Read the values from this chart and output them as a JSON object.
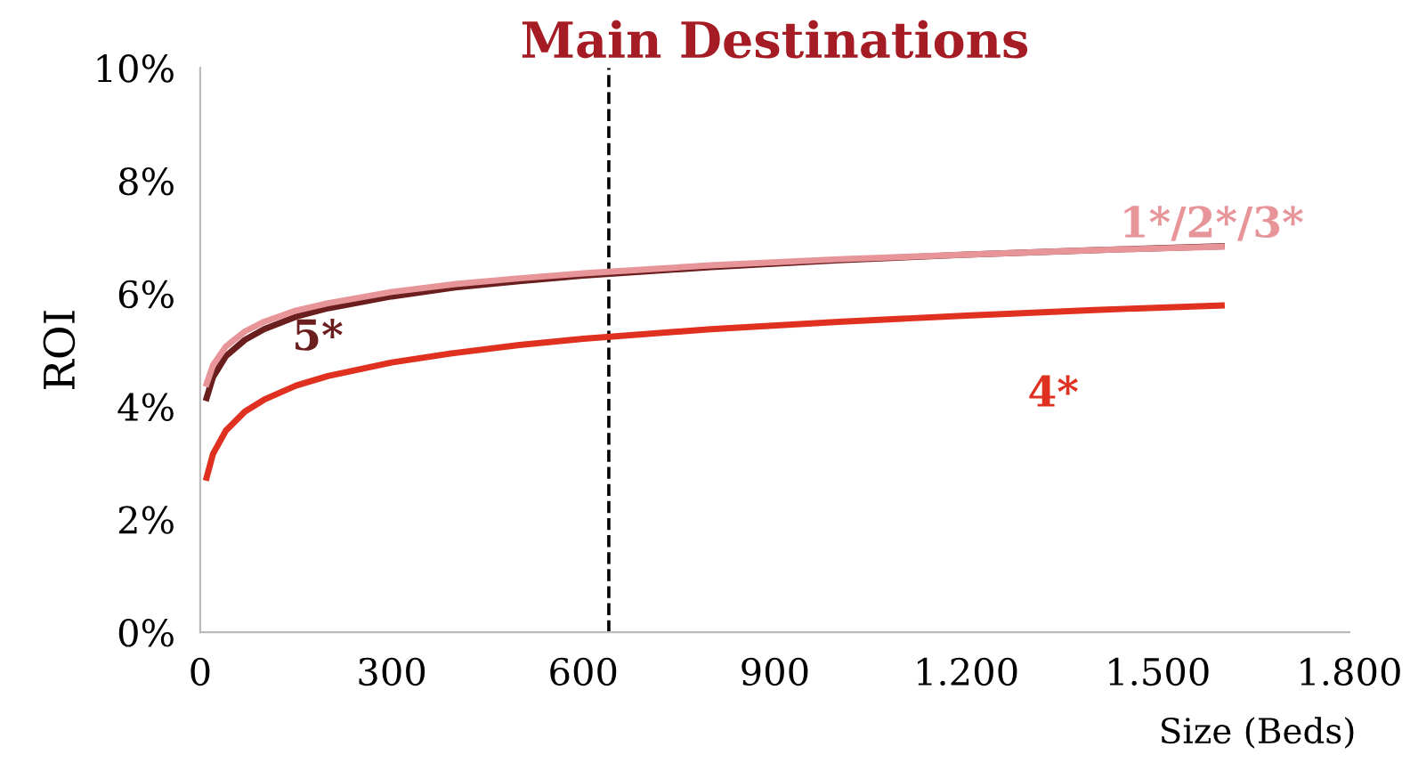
{
  "chart_data": {
    "type": "line",
    "title": "Main Destinations",
    "xlabel": "Size (Beds)",
    "ylabel": "ROI",
    "x": [
      10,
      20,
      40,
      70,
      100,
      150,
      200,
      300,
      400,
      500,
      600,
      800,
      1000,
      1200,
      1400,
      1600
    ],
    "series": [
      {
        "name": "1*/2*/3*",
        "color": "#e8959a",
        "values": [
          4.4,
          4.73,
          5.06,
          5.33,
          5.5,
          5.7,
          5.83,
          6.03,
          6.17,
          6.27,
          6.36,
          6.5,
          6.61,
          6.69,
          6.77,
          6.83
        ]
      },
      {
        "name": "5*",
        "color": "#6b1e1e",
        "values": [
          4.15,
          4.52,
          4.89,
          5.18,
          5.37,
          5.59,
          5.74,
          5.95,
          6.11,
          6.22,
          6.32,
          6.47,
          6.59,
          6.69,
          6.77,
          6.84
        ]
      },
      {
        "name": "4*",
        "color": "#e03020",
        "values": [
          2.74,
          3.16,
          3.57,
          3.91,
          4.12,
          4.37,
          4.54,
          4.78,
          4.95,
          5.09,
          5.2,
          5.37,
          5.5,
          5.61,
          5.71,
          5.79
        ]
      }
    ],
    "xlim": [
      0,
      1800
    ],
    "xticks": [
      0,
      300,
      600,
      900,
      {
        "value": 1200,
        "label": "1.200"
      },
      {
        "value": 1500,
        "label": "1.500"
      },
      {
        "value": 1800,
        "label": "1.800"
      }
    ],
    "ylim": [
      0,
      10
    ],
    "yticks": [
      {
        "value": 0,
        "label": "0%"
      },
      {
        "value": 2,
        "label": "2%"
      },
      {
        "value": 4,
        "label": "4%"
      },
      {
        "value": 6,
        "label": "6%"
      },
      {
        "value": 8,
        "label": "8%"
      },
      {
        "value": 10,
        "label": "10%"
      }
    ],
    "ref_lines": [
      {
        "axis": "x",
        "value": 640,
        "color": "#000000",
        "line_style": "dashed"
      }
    ],
    "grid": false,
    "legend": false,
    "marker": "none",
    "line_style": "solid"
  }
}
